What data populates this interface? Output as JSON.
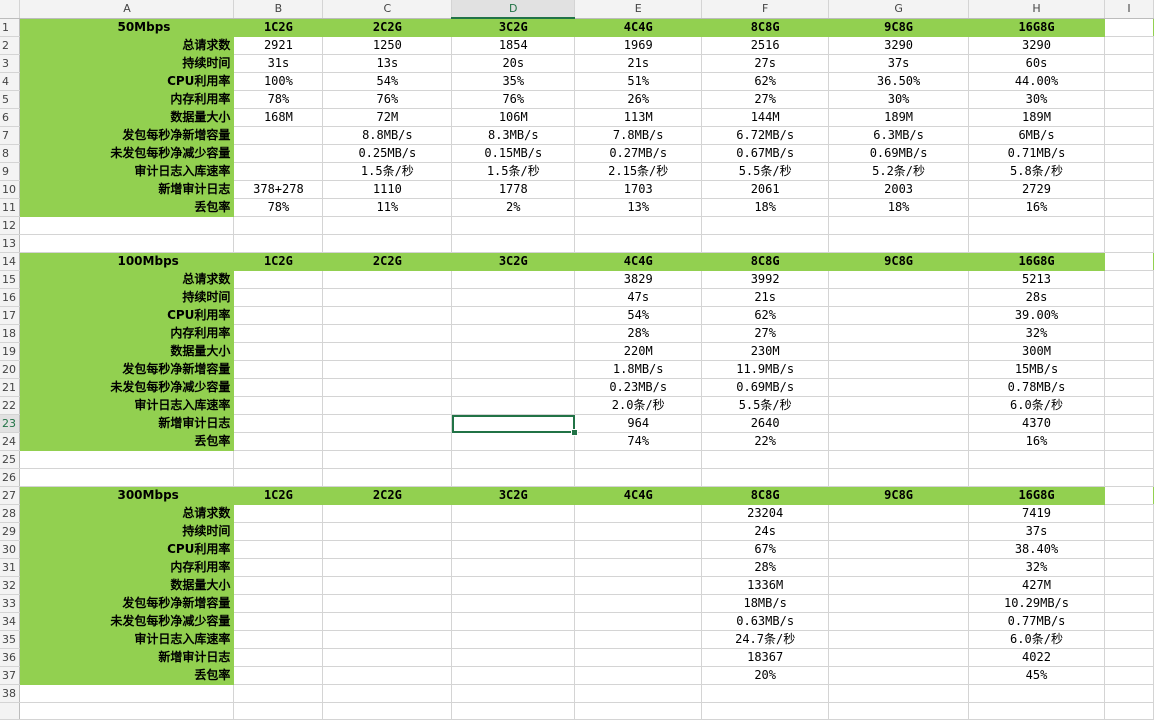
{
  "columns": [
    "A",
    "B",
    "C",
    "D",
    "E",
    "F",
    "G",
    "H",
    "I"
  ],
  "selected_column": "D",
  "selected_row": 23,
  "row_numbers": [
    "1",
    "2",
    "3",
    "4",
    "5",
    "6",
    "7",
    "8",
    "9",
    "10",
    "11",
    "12",
    "13",
    "14",
    "15",
    "16",
    "17",
    "18",
    "19",
    "20",
    "21",
    "22",
    "23",
    "24",
    "25",
    "26",
    "27",
    "28",
    "29",
    "30",
    "31",
    "32",
    "33",
    "34",
    "35",
    "36",
    "37",
    "38"
  ],
  "metric_labels": [
    "总请求数",
    "持续时间",
    "CPU利用率",
    "内存利用率",
    "数据量大小",
    "发包每秒净新增容量",
    "未发包每秒净减少容量",
    "审计日志入库速率",
    "新增审计日志",
    "丢包率"
  ],
  "config_headers": [
    "1C2G",
    "2C2G",
    "3C2G",
    "4C4G",
    "8C8G",
    "9C8G",
    "16G8G"
  ],
  "sections": [
    {
      "title": "50Mbps",
      "rows": [
        [
          "2921",
          "1250",
          "1854",
          "1969",
          "2516",
          "3290",
          "3290"
        ],
        [
          "31s",
          "13s",
          "20s",
          "21s",
          "27s",
          "37s",
          "60s"
        ],
        [
          "100%",
          "54%",
          "35%",
          "51%",
          "62%",
          "36.50%",
          "44.00%"
        ],
        [
          "78%",
          "76%",
          "76%",
          "26%",
          "27%",
          "30%",
          "30%"
        ],
        [
          "168M",
          "72M",
          "106M",
          "113M",
          "144M",
          "189M",
          "189M"
        ],
        [
          "",
          "8.8MB/s",
          "8.3MB/s",
          "7.8MB/s",
          "6.72MB/s",
          "6.3MB/s",
          "6MB/s"
        ],
        [
          "",
          "0.25MB/s",
          "0.15MB/s",
          "0.27MB/s",
          "0.67MB/s",
          "0.69MB/s",
          "0.71MB/s"
        ],
        [
          "",
          "1.5条/秒",
          "1.5条/秒",
          "2.15条/秒",
          "5.5条/秒",
          "5.2条/秒",
          "5.8条/秒"
        ],
        [
          "378+278",
          "1110",
          "1778",
          "1703",
          "2061",
          "2003",
          "2729"
        ],
        [
          "78%",
          "11%",
          "2%",
          "13%",
          "18%",
          "18%",
          "16%"
        ]
      ]
    },
    {
      "title": "100Mbps",
      "rows": [
        [
          "",
          "",
          "",
          "3829",
          "3992",
          "",
          "5213"
        ],
        [
          "",
          "",
          "",
          "47s",
          "21s",
          "",
          "28s"
        ],
        [
          "",
          "",
          "",
          "54%",
          "62%",
          "",
          "39.00%"
        ],
        [
          "",
          "",
          "",
          "28%",
          "27%",
          "",
          "32%"
        ],
        [
          "",
          "",
          "",
          "220M",
          "230M",
          "",
          "300M"
        ],
        [
          "",
          "",
          "",
          "1.8MB/s",
          "11.9MB/s",
          "",
          "15MB/s"
        ],
        [
          "",
          "",
          "",
          "0.23MB/s",
          "0.69MB/s",
          "",
          "0.78MB/s"
        ],
        [
          "",
          "",
          "",
          "2.0条/秒",
          "5.5条/秒",
          "",
          "6.0条/秒"
        ],
        [
          "",
          "",
          "",
          "964",
          "2640",
          "",
          "4370"
        ],
        [
          "",
          "",
          "",
          "74%",
          "22%",
          "",
          "16%"
        ]
      ]
    },
    {
      "title": "300Mbps",
      "rows": [
        [
          "",
          "",
          "",
          "",
          "23204",
          "",
          "7419"
        ],
        [
          "",
          "",
          "",
          "",
          "24s",
          "",
          "37s"
        ],
        [
          "",
          "",
          "",
          "",
          "67%",
          "",
          "38.40%"
        ],
        [
          "",
          "",
          "",
          "",
          "28%",
          "",
          "32%"
        ],
        [
          "",
          "",
          "",
          "",
          "1336M",
          "",
          "427M"
        ],
        [
          "",
          "",
          "",
          "",
          "18MB/s",
          "",
          "10.29MB/s"
        ],
        [
          "",
          "",
          "",
          "",
          "0.63MB/s",
          "",
          "0.77MB/s"
        ],
        [
          "",
          "",
          "",
          "",
          "24.7条/秒",
          "",
          "6.0条/秒"
        ],
        [
          "",
          "",
          "",
          "",
          "18367",
          "",
          "4022"
        ],
        [
          "",
          "",
          "",
          "",
          "20%",
          "",
          "45%"
        ]
      ]
    }
  ]
}
